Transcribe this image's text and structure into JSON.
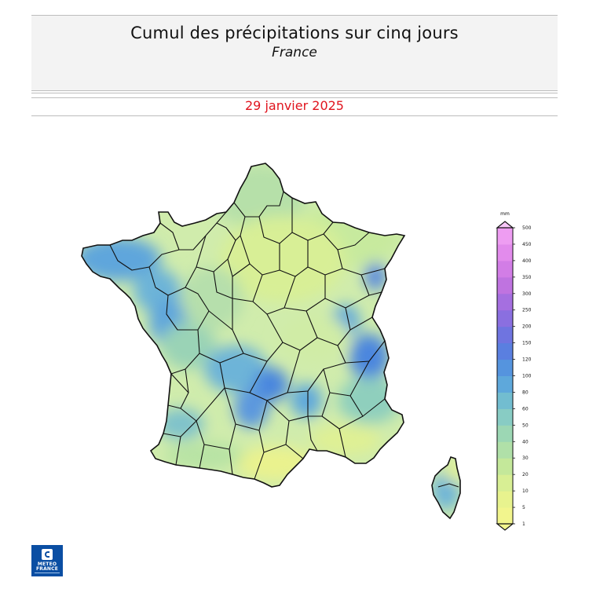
{
  "header": {
    "title": "Cumul des précipitations sur cinq jours",
    "subtitle": "France",
    "date": "29 janvier 2025"
  },
  "legend": {
    "unit": "mm",
    "ticks": [
      "1",
      "5",
      "10",
      "20",
      "30",
      "40",
      "50",
      "60",
      "80",
      "100",
      "120",
      "150",
      "200",
      "250",
      "300",
      "350",
      "400",
      "450",
      "500"
    ],
    "colors": [
      "#f2f58d",
      "#e8f38e",
      "#d8ef94",
      "#c4e89a",
      "#b0e0a8",
      "#9cd7b4",
      "#88ccc4",
      "#72bdd0",
      "#5ea8db",
      "#5594de",
      "#5a7fe0",
      "#6f74e0",
      "#8a6fe0",
      "#a56fe0",
      "#bf73e0",
      "#d27de6",
      "#e28bec",
      "#ee9df2",
      "#f6b3f7"
    ]
  },
  "logo": {
    "line1": "METEO",
    "line2": "FRANCE"
  },
  "map": {
    "region": "France",
    "corsica": "Corse"
  }
}
